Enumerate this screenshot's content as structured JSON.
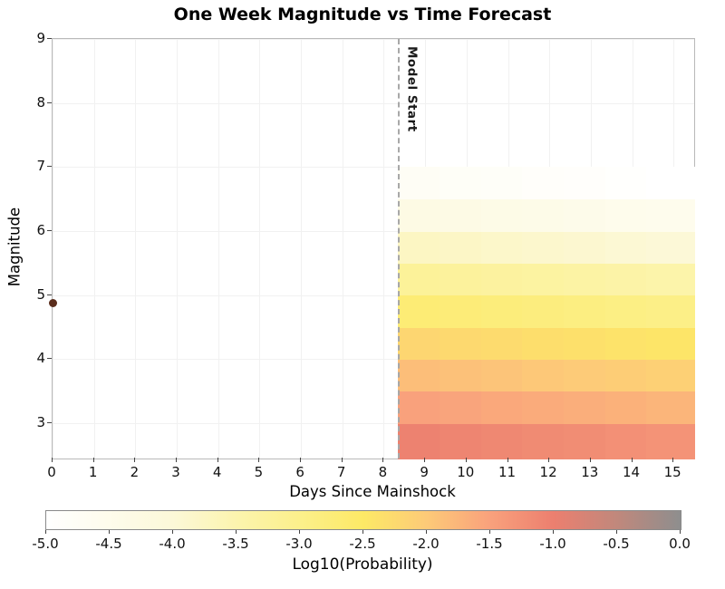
{
  "chart_data": {
    "type": "heatmap",
    "title": "One Week Magnitude vs Time Forecast",
    "xlabel": "Days Since Mainshock",
    "ylabel": "Magnitude",
    "axes": {
      "xlim": [
        0,
        15.5
      ],
      "ylim": [
        2.45,
        9
      ],
      "x_tick_values": [
        0,
        1,
        2,
        3,
        4,
        5,
        6,
        7,
        8,
        9,
        10,
        11,
        12,
        13,
        14,
        15
      ],
      "x_tick_labels": [
        "0",
        "1",
        "2",
        "3",
        "4",
        "5",
        "6",
        "7",
        "8",
        "9",
        "10",
        "11",
        "12",
        "13",
        "14",
        "15"
      ],
      "y_tick_values": [
        3,
        4,
        5,
        6,
        7,
        8,
        9
      ],
      "y_tick_labels": [
        "3",
        "4",
        "5",
        "6",
        "7",
        "8",
        "9"
      ],
      "grid": true,
      "legend_position": "none"
    },
    "model_start": {
      "day": 8.35,
      "label": "Model Start",
      "line_color": "#a8a8a8"
    },
    "mainshock": {
      "day": 0,
      "magnitude": 4.87,
      "color": "#5a2d1c"
    },
    "heatmap": {
      "time_edges": [
        8.35,
        9.35,
        10.35,
        11.35,
        12.35,
        13.35,
        14.35,
        15.5
      ],
      "rows": [
        {
          "mag_min": 2.45,
          "mag_max": 3.0,
          "values": [
            -1.05,
            -1.09,
            -1.13,
            -1.17,
            -1.21,
            -1.25,
            -1.29
          ]
        },
        {
          "mag_min": 3.0,
          "mag_max": 3.5,
          "values": [
            -1.5,
            -1.54,
            -1.58,
            -1.62,
            -1.66,
            -1.7,
            -1.74
          ]
        },
        {
          "mag_min": 3.5,
          "mag_max": 4.0,
          "values": [
            -1.85,
            -1.89,
            -1.93,
            -1.97,
            -2.01,
            -2.05,
            -2.09
          ]
        },
        {
          "mag_min": 4.0,
          "mag_max": 4.5,
          "values": [
            -2.2,
            -2.24,
            -2.28,
            -2.32,
            -2.36,
            -2.4,
            -2.44
          ]
        },
        {
          "mag_min": 4.5,
          "mag_max": 5.0,
          "values": [
            -2.7,
            -2.74,
            -2.78,
            -2.82,
            -2.86,
            -2.9,
            -2.94
          ]
        },
        {
          "mag_min": 5.0,
          "mag_max": 5.5,
          "values": [
            -3.2,
            -3.24,
            -3.28,
            -3.32,
            -3.36,
            -3.4,
            -3.44
          ]
        },
        {
          "mag_min": 5.5,
          "mag_max": 6.0,
          "values": [
            -3.75,
            -3.79,
            -3.83,
            -3.87,
            -3.91,
            -3.95,
            -3.99
          ]
        },
        {
          "mag_min": 6.0,
          "mag_max": 6.5,
          "values": [
            -4.3,
            -4.34,
            -4.38,
            -4.42,
            -4.46,
            -4.5,
            -4.54
          ]
        },
        {
          "mag_min": 6.5,
          "mag_max": 7.0,
          "values": [
            -4.75,
            -4.79,
            -4.83,
            -4.87,
            -4.91,
            -4.95,
            -4.99
          ]
        }
      ]
    },
    "colormap": {
      "range": [
        -5,
        0
      ],
      "stops": [
        [
          -5.0,
          "#ffffff"
        ],
        [
          -4.0,
          "#fcf8d8"
        ],
        [
          -3.5,
          "#fcf4ae"
        ],
        [
          -3.0,
          "#fcf08b"
        ],
        [
          -2.5,
          "#fde966"
        ],
        [
          -2.0,
          "#fdca78"
        ],
        [
          -1.5,
          "#f9a17c"
        ],
        [
          -1.0,
          "#ec7f6f"
        ],
        [
          -0.5,
          "#c0887c"
        ],
        [
          0.0,
          "#8e8e8e"
        ]
      ]
    },
    "colorbar": {
      "label": "Log10(Probability)",
      "tick_values": [
        -5.0,
        -4.5,
        -4.0,
        -3.5,
        -3.0,
        -2.5,
        -2.0,
        -1.5,
        -1.0,
        -0.5,
        0.0
      ],
      "tick_labels": [
        "-5.0",
        "-4.5",
        "-4.0",
        "-3.5",
        "-3.0",
        "-2.5",
        "-2.0",
        "-1.5",
        "-1.0",
        "-0.5",
        "0.0"
      ]
    }
  }
}
